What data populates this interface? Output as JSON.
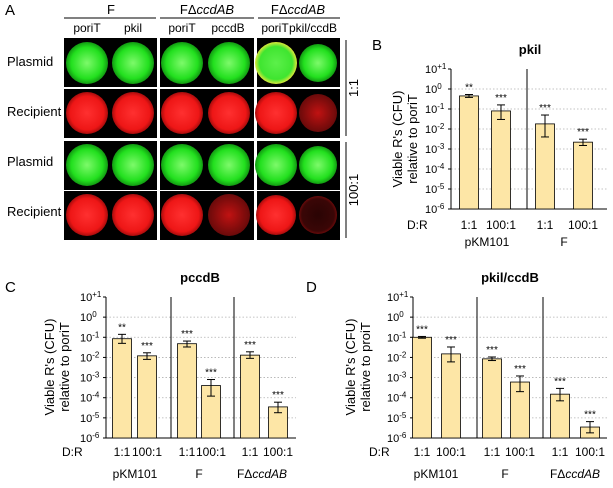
{
  "figure": {
    "panel_letters": [
      "A",
      "B",
      "C",
      "D"
    ],
    "plates": {
      "strains": [
        {
          "name": "F",
          "italic": ""
        },
        {
          "name": "FΔ",
          "italic": "ccdAB"
        },
        {
          "name": "FΔ",
          "italic": "ccdAB"
        }
      ],
      "columns": [
        "poriT",
        "pkil",
        "poriT",
        "pccdB",
        "poriT",
        "pkil/ccdB"
      ],
      "row_labels": [
        "Plasmid",
        "Recipient",
        "Plasmid",
        "Recipient"
      ],
      "ratio_labels": [
        "1:1",
        "100:1"
      ],
      "colors": {
        "plasmid_green": "#22e01e",
        "recipient_red": "#ee1616",
        "dim_red": "#5a0a0a",
        "yellow_rim": "#d8e830",
        "background": "#000000"
      }
    }
  },
  "chart_data": [
    {
      "type": "bar",
      "panel": "B",
      "title": "pkil",
      "ylabel": "Viable R's (CFU) relative to poriT",
      "yscale": "log",
      "ylim_exponent": [
        -6,
        1
      ],
      "ytick_labels": [
        "10+1",
        "100",
        "10-1",
        "10-2",
        "10-3",
        "10-4",
        "10-5",
        "10-6"
      ],
      "xlabel_prefix": "D:R",
      "categories": [
        "1:1",
        "100:1",
        "1:1",
        "100:1"
      ],
      "groups": [
        "pKM101",
        "F"
      ],
      "values": [
        0.45,
        0.08,
        0.018,
        0.0022
      ],
      "errors": [
        [
          0.38,
          0.53
        ],
        [
          0.03,
          0.16
        ],
        [
          0.004,
          0.05
        ],
        [
          0.0015,
          0.0031
        ]
      ],
      "significance": [
        "**",
        "***",
        "***",
        "***"
      ],
      "bar_color": "#fde6a6",
      "grid": true
    },
    {
      "type": "bar",
      "panel": "C",
      "title": "pccdB",
      "ylabel": "Viable R's (CFU) relative to poriT",
      "yscale": "log",
      "ylim_exponent": [
        -6,
        1
      ],
      "ytick_labels": [
        "10+1",
        "100",
        "10-1",
        "10-2",
        "10-3",
        "10-4",
        "10-5",
        "10-6"
      ],
      "xlabel_prefix": "D:R",
      "categories": [
        "1:1",
        "100:1",
        "1:1",
        "100:1",
        "1:1",
        "100:1"
      ],
      "groups": [
        "pKM101",
        "F",
        "FΔccdAB"
      ],
      "values": [
        0.085,
        0.012,
        0.048,
        0.0004,
        0.013,
        3.5e-05
      ],
      "errors": [
        [
          0.05,
          0.14
        ],
        [
          0.008,
          0.017
        ],
        [
          0.033,
          0.065
        ],
        [
          0.00012,
          0.0008
        ],
        [
          0.009,
          0.019
        ],
        [
          1.8e-05,
          6e-05
        ]
      ],
      "significance": [
        "**",
        "***",
        "***",
        "***",
        "***",
        "***"
      ],
      "bar_color": "#fde6a6",
      "grid": true
    },
    {
      "type": "bar",
      "panel": "D",
      "title": "pkil/ccdB",
      "ylabel": "Viable R's (CFU) relative to proiT",
      "yscale": "log",
      "ylim_exponent": [
        -6,
        1
      ],
      "ytick_labels": [
        "10+1",
        "100",
        "10-1",
        "10-2",
        "10-3",
        "10-4",
        "10-5",
        "10-6"
      ],
      "xlabel_prefix": "D:R",
      "categories": [
        "1:1",
        "100:1",
        "1:1",
        "100:1",
        "1:1",
        "100:1"
      ],
      "groups": [
        "pKM101",
        "F",
        "FΔccdAB"
      ],
      "values": [
        0.1,
        0.015,
        0.0085,
        0.0006,
        0.00015,
        3.5e-06
      ],
      "errors": [
        [
          0.09,
          0.11
        ],
        [
          0.006,
          0.033
        ],
        [
          0.007,
          0.0105
        ],
        [
          0.0002,
          0.0012
        ],
        [
          7e-05,
          0.00029
        ],
        [
          1.8e-06,
          6.5e-06
        ]
      ],
      "significance": [
        "***",
        "***",
        "***",
        "***",
        "***",
        "***"
      ],
      "bar_color": "#fde6a6",
      "grid": true
    }
  ]
}
